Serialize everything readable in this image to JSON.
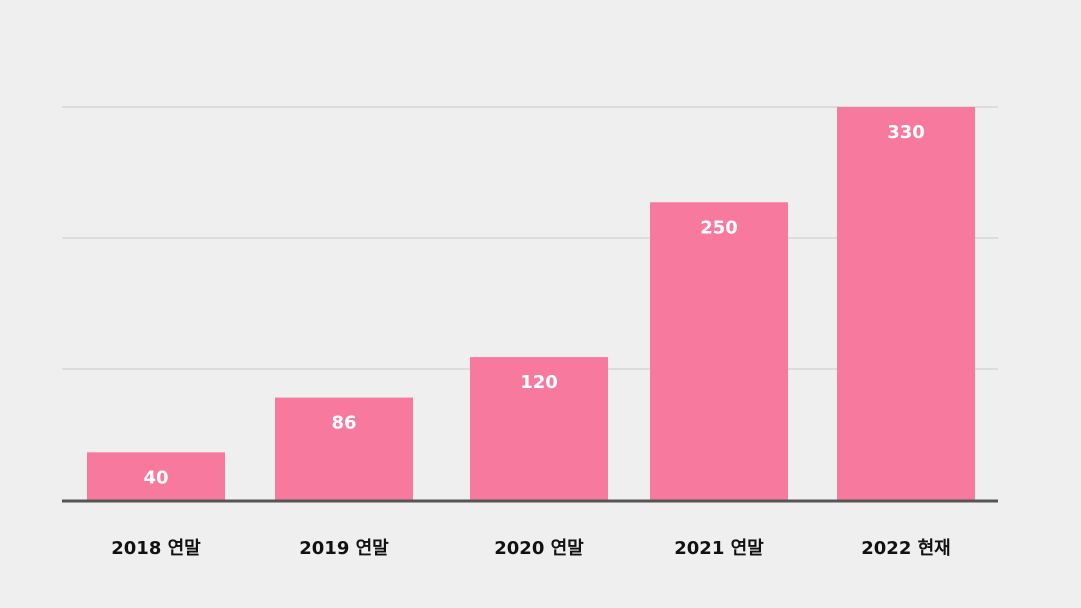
{
  "chart_data": {
    "type": "bar",
    "title": "",
    "xlabel": "",
    "ylabel": "",
    "categories": [
      "2018 연말",
      "2019 연말",
      "2020 연말",
      "2021 연말",
      "2022 현재"
    ],
    "values": [
      40,
      86,
      120,
      250,
      330
    ],
    "ylim": [
      0,
      330
    ],
    "gridlines": [
      110,
      220,
      330
    ],
    "grid": true,
    "data_labels": true,
    "bar_color": "#f7799d",
    "grid_color": "#c9c9c9",
    "axis_color": "#555555"
  }
}
